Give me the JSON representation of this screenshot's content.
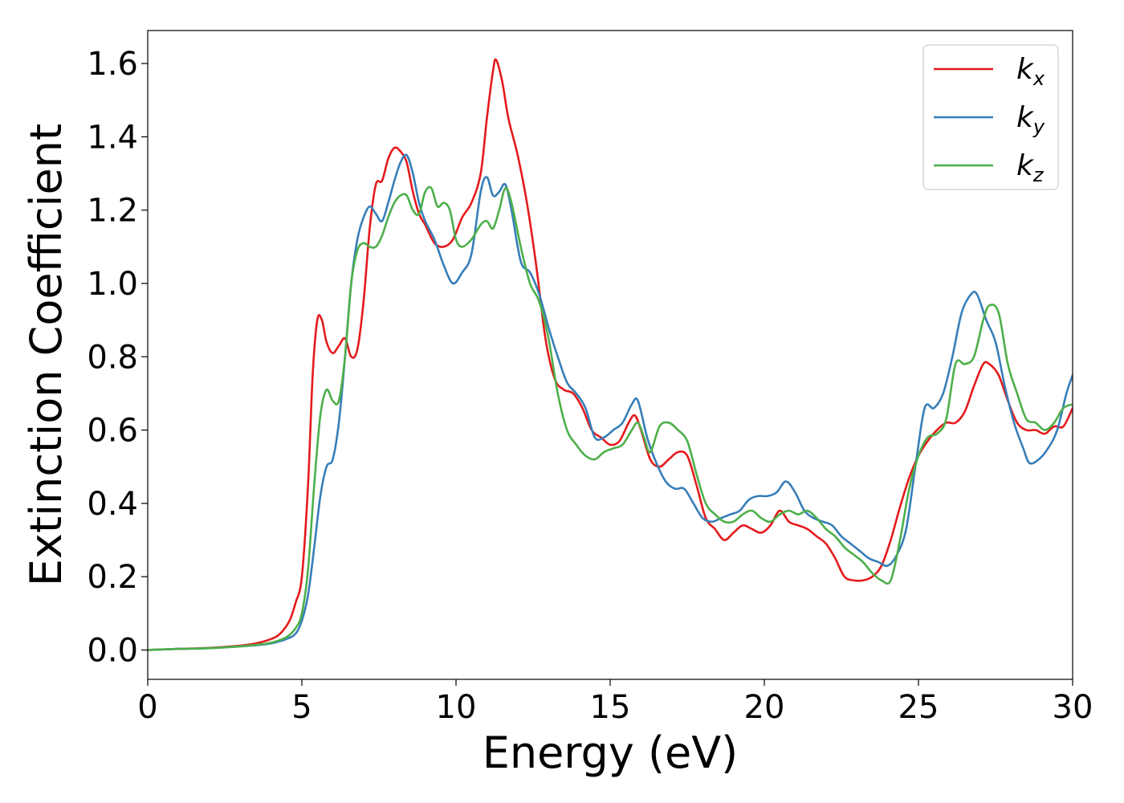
{
  "chart_data": {
    "type": "line",
    "title": "",
    "xlabel": "Energy (eV)",
    "ylabel": "Extinction Coefficient",
    "xlim": [
      0,
      30
    ],
    "ylim": [
      -0.08,
      1.69
    ],
    "xticks": [
      0,
      5,
      10,
      15,
      20,
      25,
      30
    ],
    "yticks": [
      0.0,
      0.2,
      0.4,
      0.6,
      0.8,
      1.0,
      1.2,
      1.4,
      1.6
    ],
    "xtick_labels": [
      "0",
      "5",
      "10",
      "15",
      "20",
      "25",
      "30"
    ],
    "ytick_labels": [
      "0.0",
      "0.2",
      "0.4",
      "0.6",
      "0.8",
      "1.0",
      "1.2",
      "1.4",
      "1.6"
    ],
    "grid": false,
    "legend": "top-right",
    "series": [
      {
        "name": "k_x",
        "label_base": "k",
        "label_sub": "x",
        "color": "#e41a1c",
        "x": [
          0,
          1,
          2,
          3,
          3.5,
          4,
          4.3,
          4.6,
          4.8,
          5.0,
          5.2,
          5.35,
          5.5,
          5.65,
          5.8,
          6.0,
          6.2,
          6.4,
          6.6,
          6.8,
          7.0,
          7.2,
          7.4,
          7.6,
          7.8,
          8.0,
          8.2,
          8.4,
          8.6,
          8.8,
          9.0,
          9.3,
          9.6,
          9.9,
          10.2,
          10.5,
          10.8,
          11.0,
          11.2,
          11.3,
          11.5,
          11.7,
          12.0,
          12.3,
          12.6,
          12.9,
          13.2,
          13.5,
          13.8,
          14.1,
          14.4,
          14.7,
          15.0,
          15.3,
          15.6,
          15.8,
          16.0,
          16.3,
          16.6,
          16.9,
          17.2,
          17.5,
          17.8,
          18.1,
          18.4,
          18.7,
          19.0,
          19.3,
          19.6,
          19.9,
          20.2,
          20.5,
          20.8,
          21.1,
          21.4,
          21.7,
          22.0,
          22.3,
          22.6,
          22.9,
          23.2,
          23.5,
          23.8,
          24.1,
          24.4,
          24.7,
          25.0,
          25.3,
          25.6,
          25.9,
          26.2,
          26.5,
          26.8,
          27.1,
          27.3,
          27.6,
          27.9,
          28.2,
          28.5,
          28.8,
          29.1,
          29.4,
          29.7,
          30
        ],
        "y": [
          0.0,
          0.003,
          0.006,
          0.012,
          0.018,
          0.03,
          0.045,
          0.08,
          0.13,
          0.2,
          0.45,
          0.75,
          0.9,
          0.9,
          0.84,
          0.81,
          0.83,
          0.85,
          0.8,
          0.82,
          0.95,
          1.15,
          1.27,
          1.28,
          1.34,
          1.37,
          1.36,
          1.33,
          1.25,
          1.19,
          1.16,
          1.11,
          1.1,
          1.12,
          1.18,
          1.22,
          1.3,
          1.45,
          1.58,
          1.61,
          1.55,
          1.45,
          1.35,
          1.22,
          1.05,
          0.85,
          0.74,
          0.71,
          0.7,
          0.66,
          0.6,
          0.58,
          0.56,
          0.57,
          0.62,
          0.64,
          0.6,
          0.52,
          0.5,
          0.52,
          0.54,
          0.53,
          0.45,
          0.36,
          0.33,
          0.3,
          0.32,
          0.34,
          0.33,
          0.32,
          0.34,
          0.38,
          0.35,
          0.34,
          0.33,
          0.31,
          0.29,
          0.25,
          0.2,
          0.19,
          0.19,
          0.2,
          0.23,
          0.3,
          0.39,
          0.47,
          0.53,
          0.57,
          0.6,
          0.62,
          0.62,
          0.65,
          0.72,
          0.78,
          0.78,
          0.75,
          0.68,
          0.62,
          0.6,
          0.6,
          0.59,
          0.61,
          0.61,
          0.66
        ]
      },
      {
        "name": "k_y",
        "label_base": "k",
        "label_sub": "y",
        "color": "#377eb8",
        "x": [
          0,
          1,
          2,
          3,
          3.5,
          4,
          4.5,
          4.8,
          5.0,
          5.2,
          5.4,
          5.6,
          5.8,
          6.0,
          6.2,
          6.4,
          6.6,
          6.8,
          7.0,
          7.2,
          7.4,
          7.6,
          7.8,
          8.0,
          8.2,
          8.4,
          8.6,
          8.8,
          9.0,
          9.3,
          9.6,
          9.9,
          10.2,
          10.5,
          10.8,
          11.0,
          11.2,
          11.4,
          11.6,
          11.8,
          12.1,
          12.4,
          12.7,
          13.0,
          13.3,
          13.6,
          13.9,
          14.2,
          14.5,
          14.8,
          15.1,
          15.4,
          15.7,
          15.9,
          16.2,
          16.5,
          16.8,
          17.1,
          17.4,
          17.7,
          18.0,
          18.3,
          18.6,
          18.9,
          19.2,
          19.5,
          19.8,
          20.1,
          20.4,
          20.7,
          21.0,
          21.3,
          21.6,
          21.9,
          22.2,
          22.5,
          22.8,
          23.1,
          23.4,
          23.7,
          24.0,
          24.3,
          24.6,
          24.9,
          25.2,
          25.5,
          25.8,
          26.1,
          26.4,
          26.7,
          26.9,
          27.2,
          27.5,
          27.8,
          28.1,
          28.4,
          28.6,
          28.9,
          29.2,
          29.5,
          29.8,
          30
        ],
        "y": [
          0.0,
          0.003,
          0.005,
          0.01,
          0.013,
          0.018,
          0.03,
          0.045,
          0.08,
          0.15,
          0.28,
          0.42,
          0.5,
          0.52,
          0.62,
          0.8,
          1.0,
          1.12,
          1.18,
          1.21,
          1.19,
          1.17,
          1.22,
          1.28,
          1.33,
          1.35,
          1.3,
          1.22,
          1.17,
          1.12,
          1.05,
          1.0,
          1.03,
          1.08,
          1.25,
          1.29,
          1.24,
          1.25,
          1.27,
          1.2,
          1.06,
          1.03,
          0.97,
          0.88,
          0.8,
          0.73,
          0.7,
          0.66,
          0.58,
          0.58,
          0.6,
          0.62,
          0.67,
          0.68,
          0.58,
          0.51,
          0.46,
          0.44,
          0.44,
          0.4,
          0.36,
          0.35,
          0.36,
          0.37,
          0.38,
          0.41,
          0.42,
          0.42,
          0.43,
          0.46,
          0.43,
          0.38,
          0.36,
          0.35,
          0.34,
          0.31,
          0.29,
          0.27,
          0.25,
          0.24,
          0.23,
          0.26,
          0.33,
          0.5,
          0.66,
          0.66,
          0.7,
          0.8,
          0.92,
          0.97,
          0.97,
          0.9,
          0.84,
          0.72,
          0.62,
          0.55,
          0.51,
          0.52,
          0.55,
          0.6,
          0.7,
          0.75
        ]
      },
      {
        "name": "k_z",
        "label_base": "k",
        "label_sub": "z",
        "color": "#4daf4a",
        "x": [
          0,
          1,
          2,
          3,
          3.5,
          4,
          4.5,
          4.8,
          5.0,
          5.2,
          5.4,
          5.6,
          5.8,
          6.0,
          6.2,
          6.4,
          6.6,
          6.8,
          7.0,
          7.2,
          7.4,
          7.6,
          7.8,
          8.0,
          8.2,
          8.4,
          8.6,
          8.8,
          9.0,
          9.2,
          9.4,
          9.6,
          9.8,
          10.0,
          10.2,
          10.5,
          10.8,
          11.0,
          11.2,
          11.4,
          11.6,
          11.8,
          12.1,
          12.4,
          12.7,
          13.0,
          13.3,
          13.6,
          13.9,
          14.2,
          14.5,
          14.8,
          15.1,
          15.4,
          15.7,
          15.9,
          16.1,
          16.3,
          16.6,
          16.9,
          17.2,
          17.5,
          17.8,
          18.1,
          18.4,
          18.7,
          19.0,
          19.3,
          19.6,
          19.9,
          20.2,
          20.5,
          20.8,
          21.1,
          21.4,
          21.7,
          22.0,
          22.3,
          22.6,
          22.9,
          23.2,
          23.5,
          23.8,
          24.1,
          24.4,
          24.7,
          25.0,
          25.3,
          25.6,
          25.9,
          26.2,
          26.5,
          26.8,
          27.1,
          27.3,
          27.6,
          27.9,
          28.2,
          28.5,
          28.8,
          29.1,
          29.4,
          29.7,
          30
        ],
        "y": [
          0.0,
          0.003,
          0.005,
          0.01,
          0.014,
          0.02,
          0.035,
          0.06,
          0.1,
          0.22,
          0.45,
          0.64,
          0.71,
          0.68,
          0.68,
          0.8,
          1.0,
          1.09,
          1.11,
          1.1,
          1.1,
          1.13,
          1.18,
          1.22,
          1.24,
          1.24,
          1.2,
          1.19,
          1.25,
          1.26,
          1.21,
          1.22,
          1.2,
          1.12,
          1.1,
          1.12,
          1.16,
          1.17,
          1.15,
          1.2,
          1.26,
          1.22,
          1.1,
          1.0,
          0.95,
          0.85,
          0.7,
          0.6,
          0.56,
          0.53,
          0.52,
          0.54,
          0.55,
          0.56,
          0.6,
          0.62,
          0.58,
          0.54,
          0.61,
          0.62,
          0.6,
          0.57,
          0.48,
          0.4,
          0.37,
          0.35,
          0.35,
          0.37,
          0.38,
          0.36,
          0.35,
          0.37,
          0.38,
          0.37,
          0.38,
          0.36,
          0.33,
          0.31,
          0.28,
          0.26,
          0.24,
          0.21,
          0.19,
          0.19,
          0.3,
          0.44,
          0.53,
          0.58,
          0.59,
          0.63,
          0.78,
          0.78,
          0.8,
          0.9,
          0.94,
          0.92,
          0.78,
          0.7,
          0.63,
          0.62,
          0.6,
          0.62,
          0.66,
          0.67
        ]
      }
    ]
  }
}
